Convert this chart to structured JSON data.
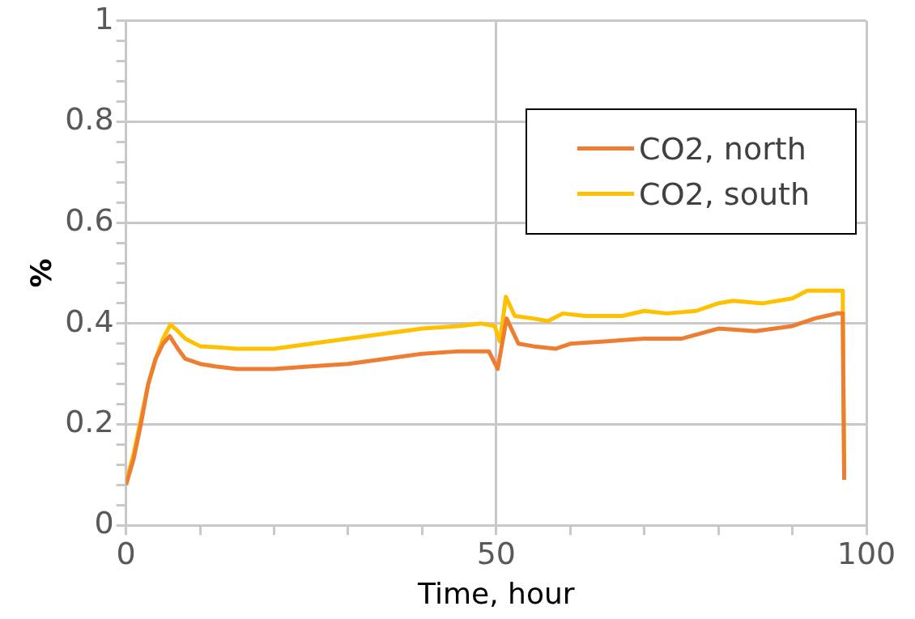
{
  "chart_data": {
    "type": "line",
    "xlabel": "Time, hour",
    "ylabel": "%",
    "xlim": [
      0,
      100
    ],
    "ylim": [
      0,
      1
    ],
    "xticks": [
      0,
      {
        "value": 10,
        "label": null
      },
      {
        "value": 20,
        "label": null
      },
      {
        "value": 30,
        "label": null
      },
      {
        "value": 40,
        "label": null
      },
      50,
      {
        "value": 60,
        "label": null
      },
      {
        "value": 70,
        "label": null
      },
      {
        "value": 80,
        "label": null
      },
      {
        "value": 90,
        "label": null
      },
      100
    ],
    "yticks": [
      0,
      {
        "value": 0.04,
        "label": null
      },
      {
        "value": 0.08,
        "label": null
      },
      {
        "value": 0.12,
        "label": null
      },
      {
        "value": 0.16,
        "label": null
      },
      0.2,
      {
        "value": 0.24,
        "label": null
      },
      {
        "value": 0.28,
        "label": null
      },
      {
        "value": 0.32,
        "label": null
      },
      {
        "value": 0.36,
        "label": null
      },
      0.4,
      {
        "value": 0.44,
        "label": null
      },
      {
        "value": 0.48,
        "label": null
      },
      {
        "value": 0.52,
        "label": null
      },
      {
        "value": 0.56,
        "label": null
      },
      0.6,
      {
        "value": 0.64,
        "label": null
      },
      {
        "value": 0.68,
        "label": null
      },
      {
        "value": 0.72,
        "label": null
      },
      {
        "value": 0.76,
        "label": null
      },
      0.8,
      {
        "value": 0.84,
        "label": null
      },
      {
        "value": 0.88,
        "label": null
      },
      {
        "value": 0.92,
        "label": null
      },
      {
        "value": 0.96,
        "label": null
      },
      1
    ],
    "grid": true,
    "legend": "top right",
    "marker": "none",
    "line_style": "solid",
    "series": [
      {
        "name": "CO2, north",
        "color": "#ed7d31",
        "x": [
          0,
          1,
          2,
          3,
          4,
          5,
          5.9,
          7,
          8,
          10,
          12,
          15,
          18,
          20,
          25,
          30,
          35,
          40,
          45,
          49,
          50.2,
          51.4,
          53,
          55,
          58,
          60,
          65,
          70,
          75,
          80,
          85,
          90,
          93,
          96,
          96.8,
          97
        ],
        "values": [
          0.08,
          0.13,
          0.2,
          0.28,
          0.33,
          0.36,
          0.375,
          0.35,
          0.33,
          0.32,
          0.315,
          0.31,
          0.31,
          0.31,
          0.315,
          0.32,
          0.33,
          0.34,
          0.345,
          0.345,
          0.31,
          0.41,
          0.36,
          0.355,
          0.35,
          0.36,
          0.365,
          0.37,
          0.37,
          0.39,
          0.385,
          0.395,
          0.41,
          0.42,
          0.42,
          0.09
        ]
      },
      {
        "name": "CO2, south",
        "color": "#ffc000",
        "x": [
          0,
          1,
          2,
          3,
          4,
          5,
          6,
          7,
          8,
          10,
          15,
          20,
          25,
          30,
          35,
          40,
          45,
          48,
          49.8,
          50.5,
          51.3,
          52.5,
          55,
          57,
          59,
          62,
          67,
          70,
          73,
          77,
          80,
          82,
          86,
          90,
          92,
          95,
          96.8,
          97
        ],
        "values": [
          0.085,
          0.14,
          0.21,
          0.28,
          0.33,
          0.37,
          0.398,
          0.385,
          0.37,
          0.355,
          0.35,
          0.35,
          0.36,
          0.37,
          0.38,
          0.39,
          0.395,
          0.4,
          0.395,
          0.364,
          0.453,
          0.415,
          0.41,
          0.405,
          0.42,
          0.415,
          0.415,
          0.425,
          0.42,
          0.425,
          0.44,
          0.445,
          0.44,
          0.45,
          0.465,
          0.465,
          0.465,
          0.09
        ]
      }
    ]
  }
}
